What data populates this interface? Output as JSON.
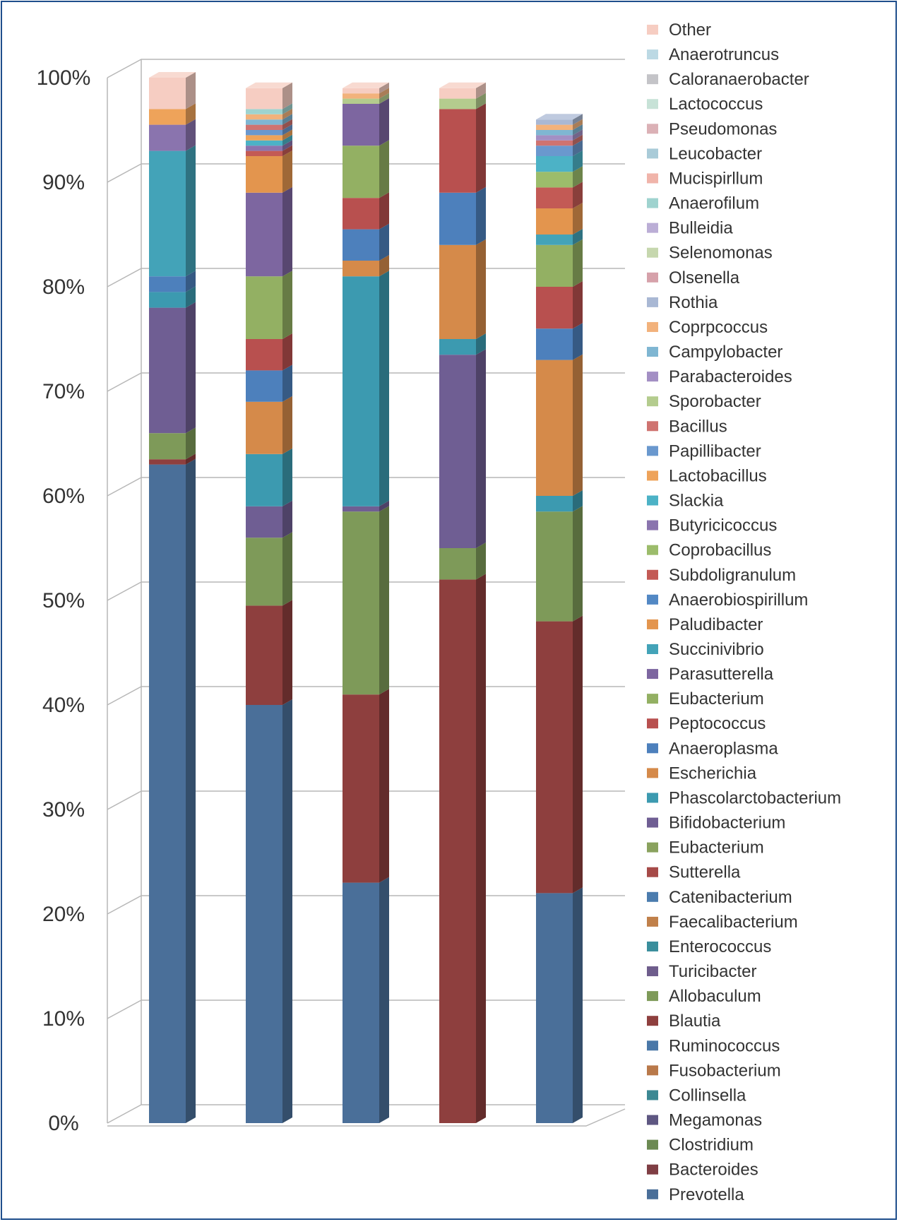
{
  "chart_data": {
    "type": "bar",
    "stacked": true,
    "percent": true,
    "three_d": true,
    "title": "",
    "xlabel": "",
    "ylabel": "",
    "ylim": [
      0,
      100
    ],
    "yticks": [
      "0%",
      "10%",
      "20%",
      "30%",
      "40%",
      "50%",
      "60%",
      "70%",
      "80%",
      "90%",
      "100%"
    ],
    "categories": [
      "",
      "",
      "",
      "",
      ""
    ],
    "legend_position": "right",
    "series": [
      {
        "name": "Prevotella",
        "color": "#4a6f99",
        "values": [
          63,
          40,
          23,
          0,
          22
        ]
      },
      {
        "name": "Bacteroides",
        "color": "#7f3e44",
        "values": [
          0,
          0,
          0,
          0,
          0
        ]
      },
      {
        "name": "Clostridium",
        "color": "#6c8a53",
        "values": [
          0,
          0,
          0,
          0,
          0
        ]
      },
      {
        "name": "Megamonas",
        "color": "#5e5782",
        "values": [
          0,
          0,
          0,
          0,
          0
        ]
      },
      {
        "name": "Collinsella",
        "color": "#3c8893",
        "values": [
          0,
          0,
          0,
          0,
          0
        ]
      },
      {
        "name": "Fusobacterium",
        "color": "#b9794a",
        "values": [
          0,
          0,
          0,
          0,
          0
        ]
      },
      {
        "name": "Ruminococcus",
        "color": "#4a78a8",
        "values": [
          0,
          0,
          0,
          0,
          0
        ]
      },
      {
        "name": "Blautia",
        "color": "#8e3f3e",
        "values": [
          0.5,
          9.5,
          18,
          52,
          26
        ]
      },
      {
        "name": "Allobaculum",
        "color": "#7e9a59",
        "values": [
          2.5,
          6.5,
          17.5,
          3,
          10.5
        ]
      },
      {
        "name": "Turicibacter",
        "color": "#6e5d8c",
        "values": [
          0,
          0,
          0,
          0,
          0
        ]
      },
      {
        "name": "Enterococcus",
        "color": "#3a8e9c",
        "values": [
          0,
          0,
          0,
          0,
          0
        ]
      },
      {
        "name": "Faecalibacterium",
        "color": "#c0804a",
        "values": [
          0,
          0,
          0,
          0,
          0
        ]
      },
      {
        "name": "Catenibacterium",
        "color": "#4b7cae",
        "values": [
          0,
          0,
          0,
          0,
          0
        ]
      },
      {
        "name": "Sutterella",
        "color": "#a64a48",
        "values": [
          0,
          0,
          0,
          0,
          0
        ]
      },
      {
        "name": "Eubacterium",
        "color": "#8aa25e",
        "values": [
          0,
          0,
          0,
          0,
          0
        ]
      },
      {
        "name": "Bifidobacterium",
        "color": "#6f5e93",
        "values": [
          12,
          3,
          0.5,
          18.5,
          0
        ]
      },
      {
        "name": "Phascolarctobacterium",
        "color": "#3c9ab0",
        "values": [
          1.5,
          5,
          22,
          1.5,
          1.5
        ]
      },
      {
        "name": "Escherichia",
        "color": "#d58a4a",
        "values": [
          0,
          5,
          1.5,
          9,
          13
        ]
      },
      {
        "name": "Anaeroplasma",
        "color": "#4d80bc",
        "values": [
          1.5,
          3,
          3,
          5,
          3
        ]
      },
      {
        "name": "Peptococcus",
        "color": "#b8504f",
        "values": [
          0,
          3,
          3,
          8,
          4
        ]
      },
      {
        "name": "Eubacterium",
        "color": "#93b063",
        "values": [
          0,
          6,
          5,
          0,
          4
        ]
      },
      {
        "name": "Parasutterella",
        "color": "#7d66a0",
        "values": [
          0,
          8,
          4,
          0,
          0
        ]
      },
      {
        "name": "Succinivibrio",
        "color": "#43a3b8",
        "values": [
          12,
          0,
          0,
          0,
          1
        ]
      },
      {
        "name": "Paludibacter",
        "color": "#e3954e",
        "values": [
          0,
          3.5,
          0,
          0,
          2.5
        ]
      },
      {
        "name": "Anaerobiospirillum",
        "color": "#5288c4",
        "values": [
          0,
          0,
          0,
          0,
          0
        ]
      },
      {
        "name": "Subdoligranulum",
        "color": "#c35a55",
        "values": [
          0,
          0.5,
          0,
          0,
          2
        ]
      },
      {
        "name": "Coprobacillus",
        "color": "#9cbc6b",
        "values": [
          0,
          0,
          0,
          0,
          1.5
        ]
      },
      {
        "name": "Butyricicoccus",
        "color": "#8a74ae",
        "values": [
          2.5,
          0.5,
          0,
          0,
          0
        ]
      },
      {
        "name": "Slackia",
        "color": "#4cb2c6",
        "values": [
          0,
          0.5,
          0,
          0,
          1.5
        ]
      },
      {
        "name": "Lactobacillus",
        "color": "#eea35a",
        "values": [
          1.5,
          0.5,
          0,
          0,
          0
        ]
      },
      {
        "name": "Papillibacter",
        "color": "#6a98ce",
        "values": [
          0,
          0.5,
          0,
          0,
          1
        ]
      },
      {
        "name": "Bacillus",
        "color": "#cf7370",
        "values": [
          0,
          0.5,
          0,
          0,
          0.5
        ]
      },
      {
        "name": "Sporobacter",
        "color": "#b4cc8e",
        "values": [
          0,
          0,
          0.5,
          1,
          0
        ]
      },
      {
        "name": "Parabacteroides",
        "color": "#a38fc4",
        "values": [
          0,
          0,
          0,
          0,
          0.5
        ]
      },
      {
        "name": "Campylobacter",
        "color": "#7fb6d2",
        "values": [
          0,
          0.5,
          0,
          0,
          0.5
        ]
      },
      {
        "name": "Coprpcoccus",
        "color": "#f2b27c",
        "values": [
          0,
          0.5,
          0.5,
          0,
          0.5
        ]
      },
      {
        "name": "Rothia",
        "color": "#a9b8d4",
        "values": [
          0,
          0,
          0,
          0,
          0.5
        ]
      },
      {
        "name": "Olsenella",
        "color": "#d6a1aa",
        "values": [
          0,
          0,
          0,
          0,
          0
        ]
      },
      {
        "name": "Selenomonas",
        "color": "#c6d7ae",
        "values": [
          0,
          0,
          0,
          0,
          0
        ]
      },
      {
        "name": "Bulleidia",
        "color": "#bbaed6",
        "values": [
          0,
          0,
          0,
          0,
          0
        ]
      },
      {
        "name": "Anaerofilum",
        "color": "#9fd3cf",
        "values": [
          0,
          0.5,
          0,
          0,
          0
        ]
      },
      {
        "name": "Mucispirllum",
        "color": "#f0b4aa",
        "values": [
          0,
          0,
          0,
          0,
          0
        ]
      },
      {
        "name": "Leucobacter",
        "color": "#a9cbd8",
        "values": [
          0,
          0,
          0,
          0,
          0
        ]
      },
      {
        "name": "Pseudomonas",
        "color": "#dbb1b6",
        "values": [
          0,
          0,
          0,
          0,
          0
        ]
      },
      {
        "name": "Lactococcus",
        "color": "#c7e2d7",
        "values": [
          0,
          0,
          0,
          0,
          0
        ]
      },
      {
        "name": "Caloranaerobacter",
        "color": "#c4c4c8",
        "values": [
          0,
          0,
          0,
          0,
          0
        ]
      },
      {
        "name": "Anaerotruncus",
        "color": "#bcd9e4",
        "values": [
          0,
          0,
          0,
          0,
          0
        ]
      },
      {
        "name": "Other",
        "color": "#f6cdc2",
        "values": [
          3,
          2,
          0.5,
          1,
          0
        ]
      }
    ]
  }
}
